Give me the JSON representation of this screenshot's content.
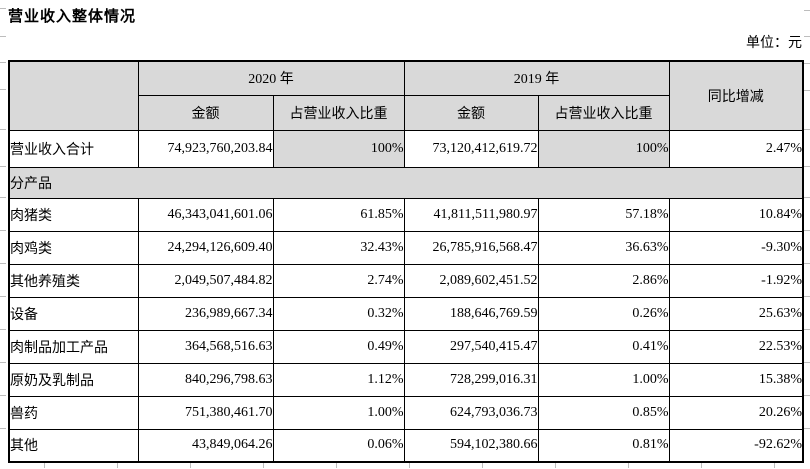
{
  "page": {
    "title": "营业收入整体情况",
    "unit_label": "单位：元"
  },
  "colors": {
    "header_bg": "#d9d9d9",
    "highlight_bg": "#d9d9d9",
    "border": "#000000"
  },
  "table": {
    "header": {
      "year_2020": "2020 年",
      "year_2019": "2019 年",
      "amount": "金额",
      "ratio": "占营业收入比重",
      "yoy": "同比增减"
    },
    "total_row": {
      "label": "营业收入合计",
      "amount_2020": "74,923,760,203.84",
      "ratio_2020": "100%",
      "amount_2019": "73,120,412,619.72",
      "ratio_2019": "100%",
      "yoy": "2.47%"
    },
    "section_row": {
      "label": "分产品"
    },
    "rows": [
      {
        "label": "肉猪类",
        "amount_2020": "46,343,041,601.06",
        "ratio_2020": "61.85%",
        "amount_2019": "41,811,511,980.97",
        "ratio_2019": "57.18%",
        "yoy": "10.84%"
      },
      {
        "label": "肉鸡类",
        "amount_2020": "24,294,126,609.40",
        "ratio_2020": "32.43%",
        "amount_2019": "26,785,916,568.47",
        "ratio_2019": "36.63%",
        "yoy": "-9.30%"
      },
      {
        "label": "其他养殖类",
        "amount_2020": "2,049,507,484.82",
        "ratio_2020": "2.74%",
        "amount_2019": "2,089,602,451.52",
        "ratio_2019": "2.86%",
        "yoy": "-1.92%"
      },
      {
        "label": "设备",
        "amount_2020": "236,989,667.34",
        "ratio_2020": "0.32%",
        "amount_2019": "188,646,769.59",
        "ratio_2019": "0.26%",
        "yoy": "25.63%"
      },
      {
        "label": "肉制品加工产品",
        "amount_2020": "364,568,516.63",
        "ratio_2020": "0.49%",
        "amount_2019": "297,540,415.47",
        "ratio_2019": "0.41%",
        "yoy": "22.53%"
      },
      {
        "label": "原奶及乳制品",
        "amount_2020": "840,296,798.63",
        "ratio_2020": "1.12%",
        "amount_2019": "728,299,016.31",
        "ratio_2019": "1.00%",
        "yoy": "15.38%"
      },
      {
        "label": "兽药",
        "amount_2020": "751,380,461.70",
        "ratio_2020": "1.00%",
        "amount_2019": "624,793,036.73",
        "ratio_2019": "0.85%",
        "yoy": "20.26%"
      },
      {
        "label": "其他",
        "amount_2020": "43,849,064.26",
        "ratio_2020": "0.06%",
        "amount_2019": "594,102,380.66",
        "ratio_2019": "0.81%",
        "yoy": "-92.62%"
      }
    ]
  }
}
